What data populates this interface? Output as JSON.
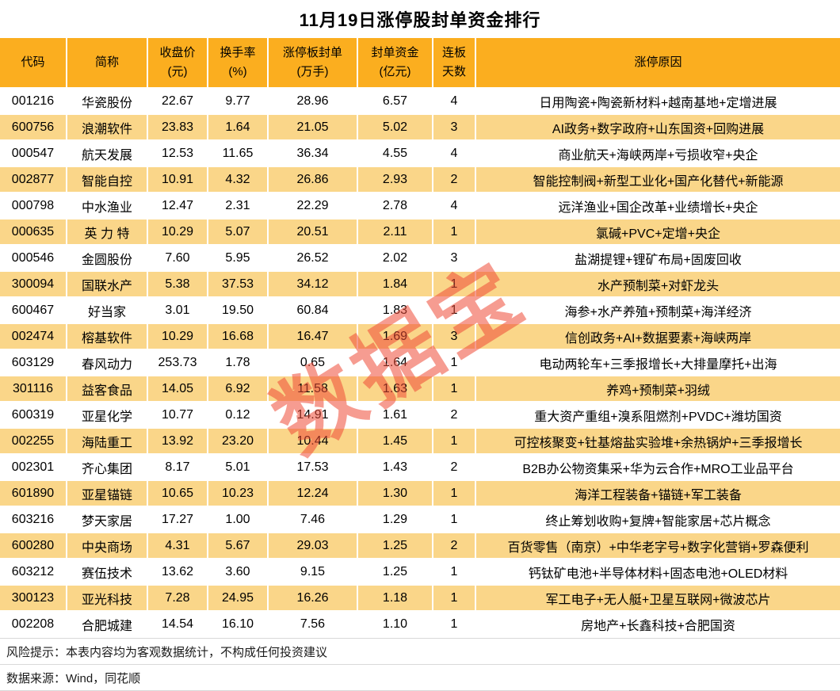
{
  "title": "11月19日涨停股封单资金排行",
  "watermark": {
    "text": "数据宝",
    "color": "#EE4B37"
  },
  "colors": {
    "header_bg": "#FBAE1F",
    "stripe_bg": "#FAD689",
    "row_bg": "#FFFFFF",
    "grid_divider": "#FFFFFF",
    "footer_line": "#D9D9D9",
    "title_color": "#000000",
    "watermark_color": "#EE4B37"
  },
  "chart_data": {
    "type": "table",
    "title": "11月19日涨停股封单资金排行",
    "columns": [
      {
        "key": "code",
        "label": "代码"
      },
      {
        "key": "name",
        "label": "简称"
      },
      {
        "key": "close",
        "label": "收盘价\n(元)"
      },
      {
        "key": "turnover",
        "label": "换手率\n(%)"
      },
      {
        "key": "seal_volume",
        "label": "涨停板封单\n(万手)"
      },
      {
        "key": "seal_fund",
        "label": "封单资金\n(亿元)"
      },
      {
        "key": "days",
        "label": "连板\n天数"
      },
      {
        "key": "reason",
        "label": "涨停原因"
      }
    ],
    "rows": [
      [
        "001216",
        "华瓷股份",
        "22.67",
        "9.77",
        "28.96",
        "6.57",
        "4",
        "日用陶瓷+陶瓷新材料+越南基地+定增进展"
      ],
      [
        "600756",
        "浪潮软件",
        "23.83",
        "1.64",
        "21.05",
        "5.02",
        "3",
        "AI政务+数字政府+山东国资+回购进展"
      ],
      [
        "000547",
        "航天发展",
        "12.53",
        "11.65",
        "36.34",
        "4.55",
        "4",
        "商业航天+海峡两岸+亏损收窄+央企"
      ],
      [
        "002877",
        "智能自控",
        "10.91",
        "4.32",
        "26.86",
        "2.93",
        "2",
        "智能控制阀+新型工业化+国产化替代+新能源"
      ],
      [
        "000798",
        "中水渔业",
        "12.47",
        "2.31",
        "22.29",
        "2.78",
        "4",
        "远洋渔业+国企改革+业绩增长+央企"
      ],
      [
        "000635",
        "英 力 特",
        "10.29",
        "5.07",
        "20.51",
        "2.11",
        "1",
        "氯碱+PVC+定增+央企"
      ],
      [
        "000546",
        "金圆股份",
        "7.60",
        "5.95",
        "26.52",
        "2.02",
        "3",
        "盐湖提锂+锂矿布局+固废回收"
      ],
      [
        "300094",
        "国联水产",
        "5.38",
        "37.53",
        "34.12",
        "1.84",
        "1",
        "水产预制菜+对虾龙头"
      ],
      [
        "600467",
        "好当家",
        "3.01",
        "19.50",
        "60.84",
        "1.83",
        "1",
        "海参+水产养殖+预制菜+海洋经济"
      ],
      [
        "002474",
        "榕基软件",
        "10.29",
        "16.68",
        "16.47",
        "1.69",
        "3",
        "信创政务+AI+数据要素+海峡两岸"
      ],
      [
        "603129",
        "春风动力",
        "253.73",
        "1.78",
        "0.65",
        "1.64",
        "1",
        "电动两轮车+三季报增长+大排量摩托+出海"
      ],
      [
        "301116",
        "益客食品",
        "14.05",
        "6.92",
        "11.58",
        "1.63",
        "1",
        "养鸡+预制菜+羽绒"
      ],
      [
        "600319",
        "亚星化学",
        "10.77",
        "0.12",
        "14.91",
        "1.61",
        "2",
        "重大资产重组+溴系阻燃剂+PVDC+潍坊国资"
      ],
      [
        "002255",
        "海陆重工",
        "13.92",
        "23.20",
        "10.44",
        "1.45",
        "1",
        "可控核聚变+钍基熔盐实验堆+余热锅炉+三季报增长"
      ],
      [
        "002301",
        "齐心集团",
        "8.17",
        "5.01",
        "17.53",
        "1.43",
        "2",
        "B2B办公物资集采+华为云合作+MRO工业品平台"
      ],
      [
        "601890",
        "亚星锚链",
        "10.65",
        "10.23",
        "12.24",
        "1.30",
        "1",
        "海洋工程装备+锚链+军工装备"
      ],
      [
        "603216",
        "梦天家居",
        "17.27",
        "1.00",
        "7.46",
        "1.29",
        "1",
        "终止筹划收购+复牌+智能家居+芯片概念"
      ],
      [
        "600280",
        "中央商场",
        "4.31",
        "5.67",
        "29.03",
        "1.25",
        "2",
        "百货零售（南京）+中华老字号+数字化营销+罗森便利"
      ],
      [
        "603212",
        "赛伍技术",
        "13.62",
        "3.60",
        "9.15",
        "1.25",
        "1",
        "钙钛矿电池+半导体材料+固态电池+OLED材料"
      ],
      [
        "300123",
        "亚光科技",
        "7.28",
        "24.95",
        "16.26",
        "1.18",
        "1",
        "军工电子+无人艇+卫星互联网+微波芯片"
      ],
      [
        "002208",
        "合肥城建",
        "14.54",
        "16.10",
        "7.56",
        "1.10",
        "1",
        "房地产+长鑫科技+合肥国资"
      ]
    ]
  },
  "footer": {
    "risk": "风险提示：本表内容均为客观数据统计，不构成任何投资建议",
    "source": "数据来源：Wind，同花顺"
  }
}
